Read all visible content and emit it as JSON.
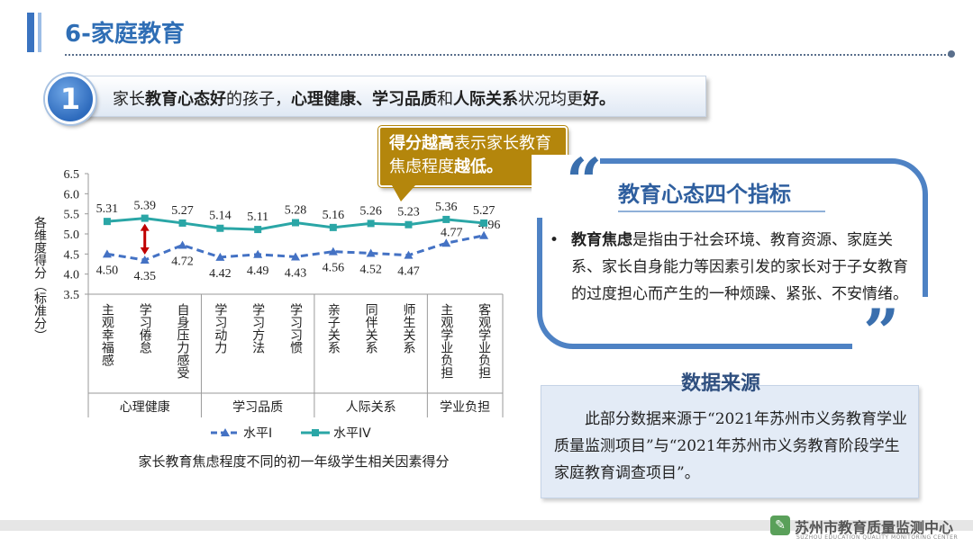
{
  "header": {
    "title": "6-家庭教育"
  },
  "key_point": {
    "number": "1",
    "p1": "家长",
    "p2": "教育心态好",
    "p3": "的孩子，",
    "p4": "心理健康、学习品质",
    "p5": "和",
    "p6": "人际关系",
    "p7": "状况均更",
    "p8": "好。"
  },
  "callout": {
    "p1": "得分越高",
    "p2": "表示家长教育焦虑程度",
    "p3": "越低。"
  },
  "panel": {
    "title": "教育心态四个指标",
    "bullet": "•",
    "term": "教育焦虑",
    "definition": "是指由于社会环境、教育资源、家庭关系、家长自身能力等因素引发的家长对于子女教育的过度担心而产生的一种烦躁、紧张、不安情绪。"
  },
  "source": {
    "title": "数据来源",
    "text": "此部分数据来源于“2021年苏州市义务教育学业质量监测项目”与“2021年苏州市义务教育阶段学生家庭教育调查项目”。"
  },
  "footer": {
    "org": "苏州市教育质量监测中心",
    "org_en": "SUZHOU EDUCATION QUALITY MONITORING CENTER"
  },
  "chart_data": {
    "type": "line",
    "title": "家长教育焦虑程度不同的初一年级学生相关因素得分",
    "ylabel": "各维度得分（标准分）",
    "ylim": [
      3.5,
      6.5
    ],
    "yticks": [
      "3.5",
      "4.0",
      "4.5",
      "5.0",
      "5.5",
      "6.0",
      "6.5"
    ],
    "grid": false,
    "categories": [
      "主观幸福感",
      "学习倦怠",
      "自身压力感受",
      "学习动力",
      "学习方法",
      "学习习惯",
      "亲子关系",
      "同伴关系",
      "师生关系",
      "主观学业负担",
      "客观学业负担"
    ],
    "groups": [
      {
        "name": "心理健康",
        "count": 3
      },
      {
        "name": "学习品质",
        "count": 3
      },
      {
        "name": "人际关系",
        "count": 3
      },
      {
        "name": "学业负担",
        "count": 2
      }
    ],
    "series": [
      {
        "name": "水平I",
        "values": [
          4.5,
          4.35,
          4.72,
          4.42,
          4.49,
          4.43,
          4.56,
          4.52,
          4.47,
          4.77,
          4.96
        ],
        "labels": [
          "4.50",
          "4.35",
          "4.72",
          "4.42",
          "4.49",
          "4.43",
          "4.56",
          "4.52",
          "4.47",
          "4.77",
          "4.96"
        ],
        "color": "#4472c4",
        "style": "dashed",
        "marker": "triangle"
      },
      {
        "name": "水平IV",
        "values": [
          5.31,
          5.39,
          5.27,
          5.14,
          5.11,
          5.28,
          5.16,
          5.26,
          5.23,
          5.36,
          5.27
        ],
        "labels": [
          "5.31",
          "5.39",
          "5.27",
          "5.14",
          "5.11",
          "5.28",
          "5.16",
          "5.26",
          "5.23",
          "5.36",
          "5.27"
        ],
        "color": "#2aa6a6",
        "style": "solid",
        "marker": "square"
      }
    ],
    "legend_position": "bottom",
    "annotation_color": "#c00000"
  }
}
